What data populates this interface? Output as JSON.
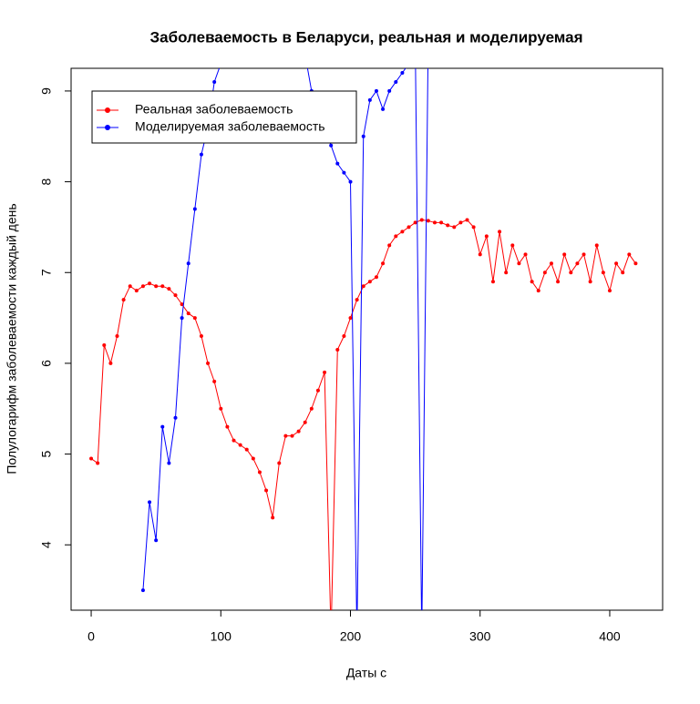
{
  "chart_data": {
    "type": "line",
    "title": "Заболеваемость в Беларуси, реальная и моделируемая",
    "x_label": "Даты с",
    "y_label": "Полулогарифм заболеваемости каждый день",
    "x": [
      0,
      5,
      10,
      15,
      20,
      25,
      30,
      35,
      40,
      45,
      50,
      55,
      60,
      65,
      70,
      75,
      80,
      85,
      90,
      95,
      100,
      105,
      110,
      115,
      120,
      125,
      130,
      135,
      140,
      145,
      150,
      155,
      160,
      165,
      170,
      175,
      180,
      185,
      190,
      195,
      200,
      205,
      210,
      215,
      220,
      225,
      230,
      235,
      240,
      245,
      250,
      255,
      260,
      265,
      270,
      275,
      280,
      285,
      290,
      295,
      300,
      305,
      310,
      315,
      320,
      325,
      330,
      335,
      340,
      345,
      350,
      355,
      360,
      365,
      370,
      375,
      380,
      385,
      390,
      395,
      400,
      405,
      410,
      415,
      420
    ],
    "series": [
      {
        "name": "Реальная заболеваемость",
        "color": "#ff0000",
        "values": [
          4.95,
          4.9,
          6.2,
          6.0,
          6.3,
          6.7,
          6.85,
          6.8,
          6.85,
          6.88,
          6.85,
          6.85,
          6.82,
          6.75,
          6.65,
          6.55,
          6.5,
          6.3,
          6.0,
          5.8,
          5.5,
          5.3,
          5.15,
          5.1,
          5.05,
          4.95,
          4.8,
          4.6,
          4.3,
          4.9,
          5.2,
          5.2,
          5.25,
          5.35,
          5.5,
          5.7,
          5.9,
          3.0,
          6.15,
          6.3,
          6.5,
          6.7,
          6.85,
          6.9,
          6.95,
          7.1,
          7.3,
          7.4,
          7.45,
          7.5,
          7.55,
          7.58,
          7.57,
          7.55,
          7.55,
          7.52,
          7.5,
          7.55,
          7.58,
          7.5,
          7.2,
          7.4,
          6.9,
          7.45,
          7.0,
          7.3,
          7.1,
          7.2,
          6.9,
          6.8,
          7.0,
          7.1,
          6.9,
          7.2,
          7.0,
          7.1,
          7.2,
          6.9,
          7.3,
          7.0,
          6.8,
          7.1,
          7.0,
          7.2,
          7.1
        ]
      },
      {
        "name": "Моделируемая заболеваемость",
        "color": "#0000ff",
        "values": [
          null,
          null,
          null,
          null,
          null,
          null,
          null,
          null,
          3.5,
          4.47,
          4.05,
          5.3,
          4.9,
          5.4,
          6.5,
          7.1,
          7.7,
          8.3,
          8.6,
          9.1,
          9.3,
          9.5,
          9.6,
          9.7,
          9.8,
          9.8,
          9.7,
          9.6,
          9.6,
          9.6,
          9.5,
          9.5,
          9.5,
          9.4,
          9.0,
          8.8,
          8.6,
          8.4,
          8.2,
          8.1,
          8.0,
          3.0,
          8.5,
          8.9,
          9.0,
          8.8,
          9.0,
          9.1,
          9.2,
          9.3,
          9.5,
          3.0,
          9.6,
          null,
          null,
          null,
          null,
          null,
          null,
          null,
          null,
          null,
          null,
          null,
          null,
          null,
          null,
          null,
          null,
          null,
          null,
          null,
          null,
          null,
          null,
          null,
          null,
          null,
          null,
          null,
          null,
          null,
          null,
          null,
          null
        ]
      }
    ],
    "xlim": [
      -15.5,
      440.8
    ],
    "ylim": [
      3.28,
      9.25
    ],
    "xticks": [
      0,
      100,
      200,
      300,
      400
    ],
    "yticks": [
      4,
      5,
      6,
      7,
      8,
      9
    ],
    "legend": "top-left"
  }
}
